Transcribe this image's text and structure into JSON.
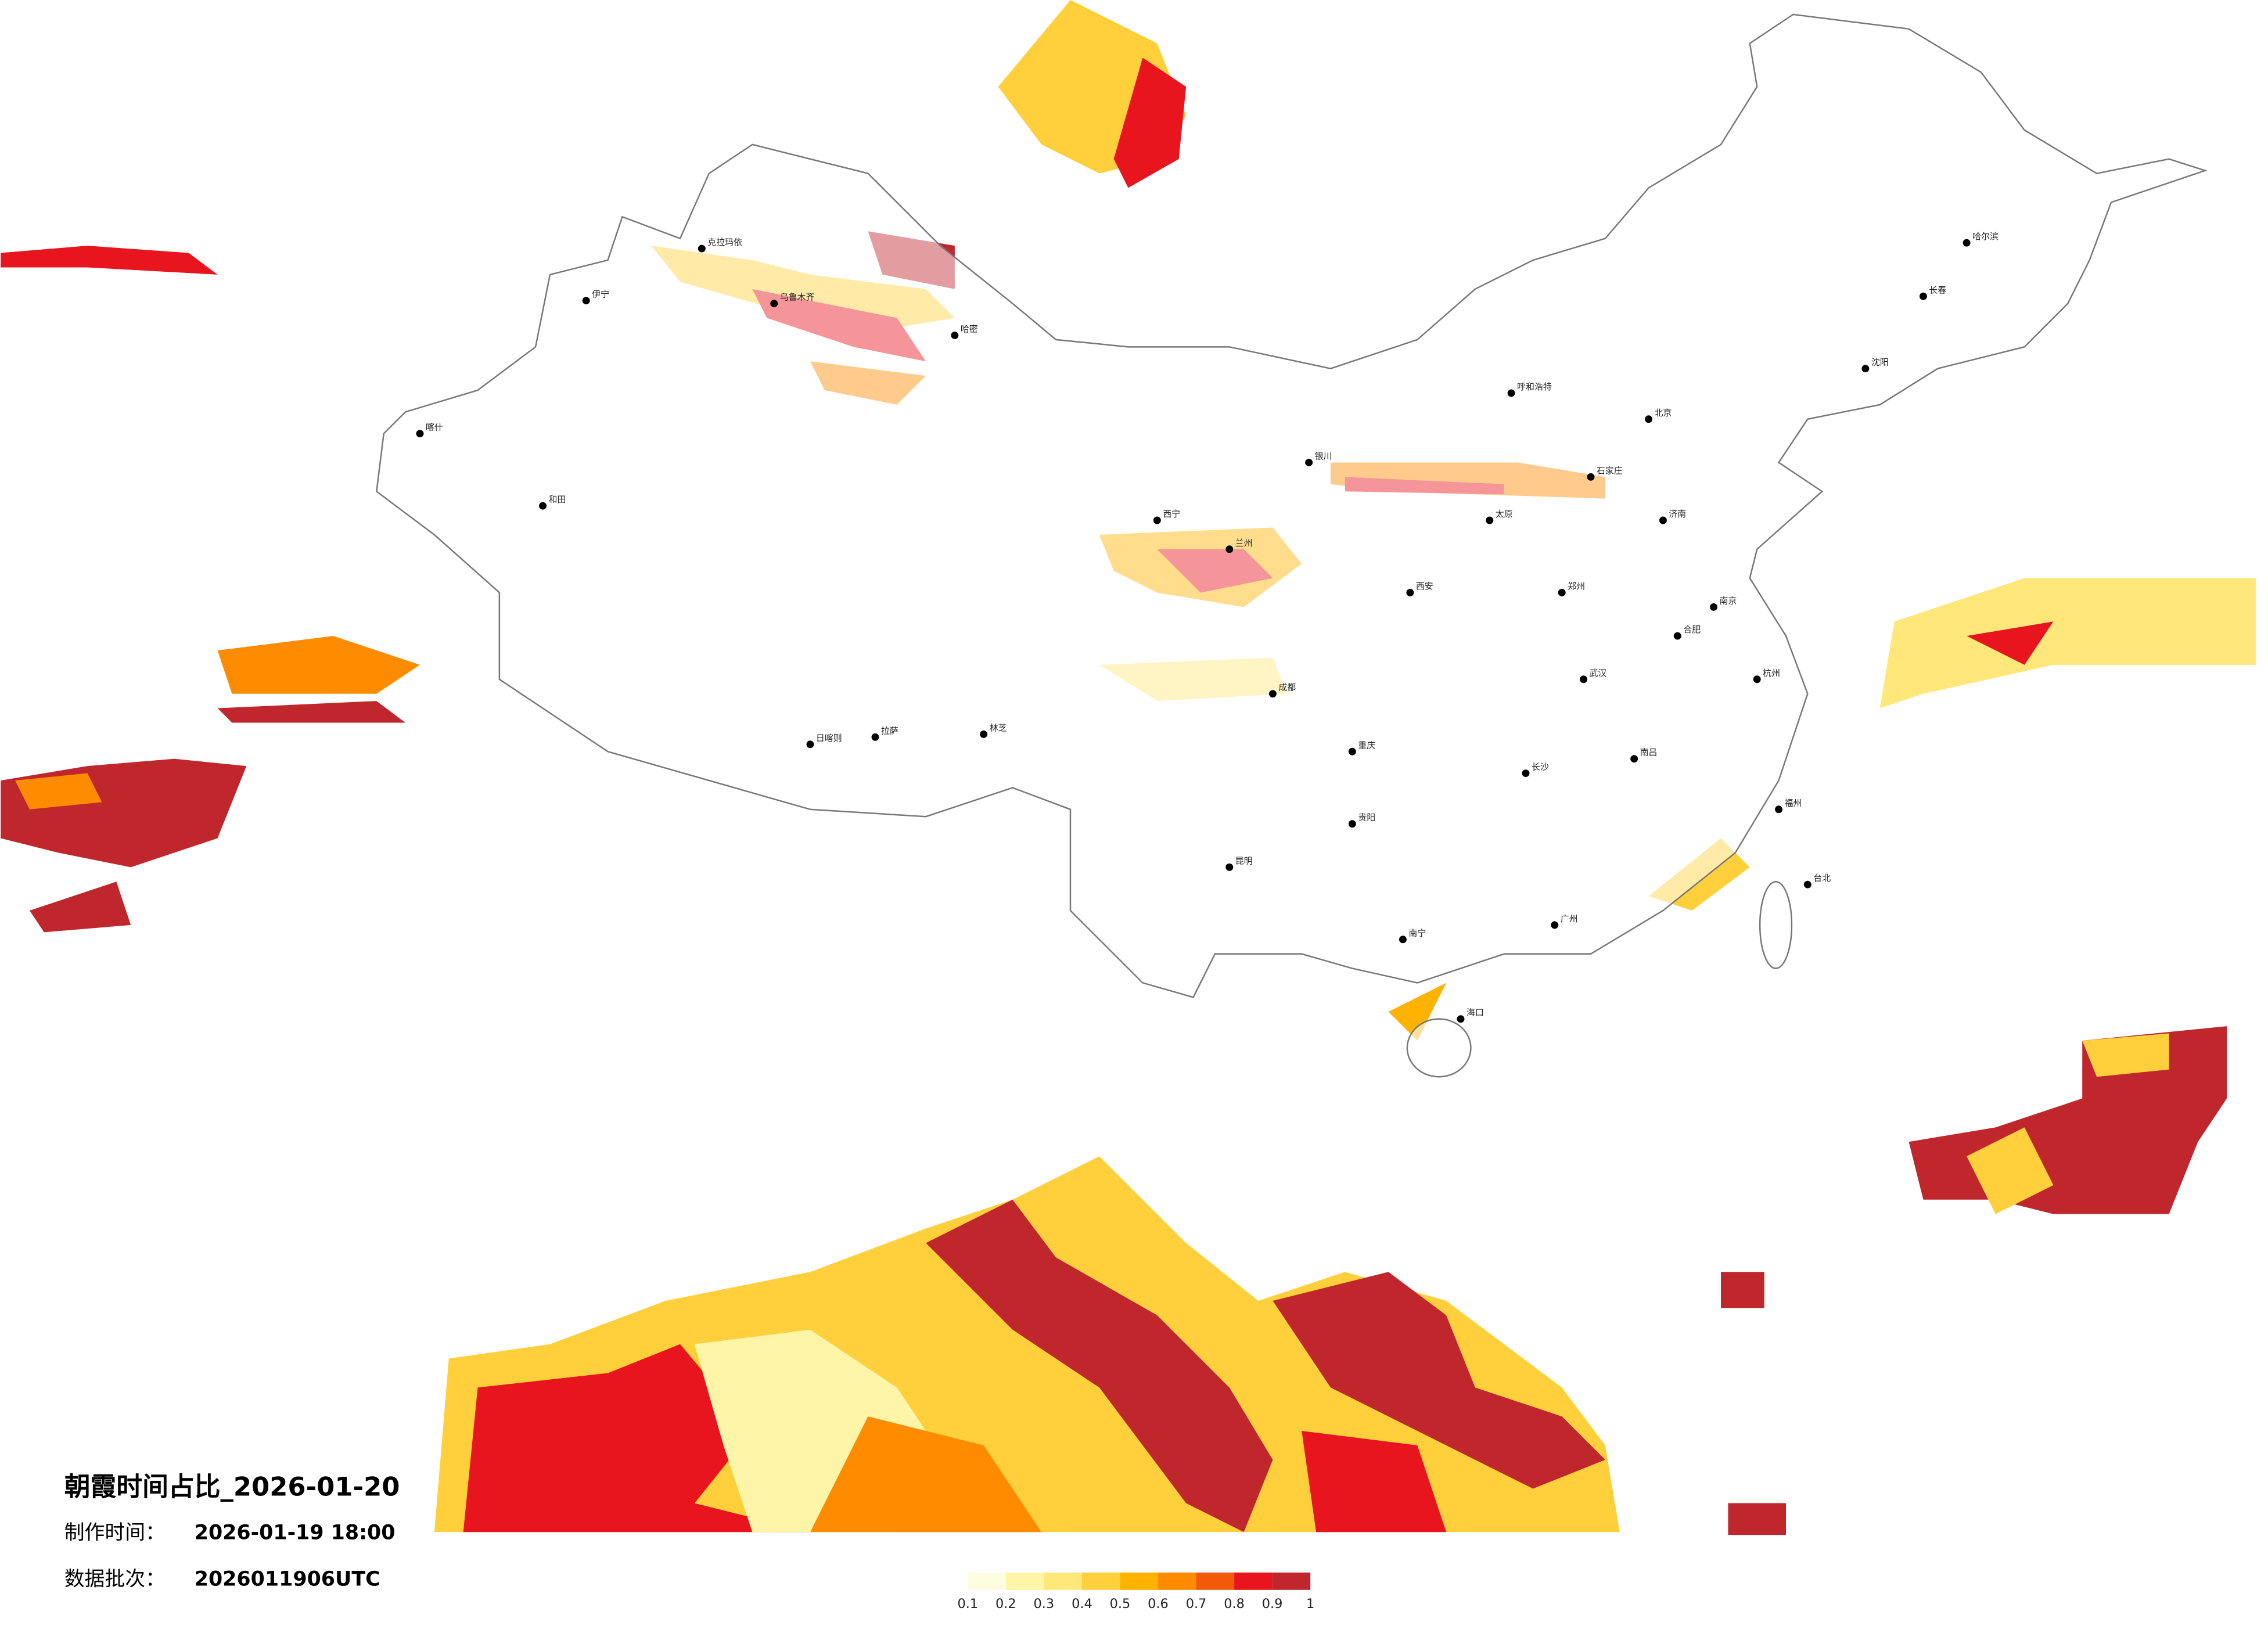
{
  "title": "朝霞时间占比_2026-01-20",
  "production_label": "制作时间：",
  "production_time": "2026-01-19 18:00",
  "batch_label": "数据批次：",
  "batch": "2026011906UTC",
  "legend": {
    "ticks": [
      0.1,
      0.2,
      0.3,
      0.4,
      0.5,
      0.6,
      0.7,
      0.8,
      0.9,
      1
    ],
    "colors": [
      "#fffde0",
      "#fff5a8",
      "#ffe77a",
      "#ffd03c",
      "#ffb300",
      "#ff8c00",
      "#f25a0a",
      "#e8141e",
      "#c0272d"
    ]
  },
  "cities": [
    "哈尔滨",
    "长春",
    "沈阳",
    "呼和浩特",
    "北京",
    "石家庄",
    "太原",
    "济南",
    "郑州",
    "西安",
    "兰州",
    "西宁",
    "银川",
    "乌鲁木齐",
    "拉萨",
    "成都",
    "重庆",
    "贵阳",
    "昆明",
    "南宁",
    "广州",
    "长沙",
    "武汉",
    "南昌",
    "合肥",
    "南京",
    "杭州",
    "福州",
    "台北",
    "海口",
    "克拉玛依",
    "和田",
    "喀什",
    "伊宁",
    "哈密",
    "日喀则",
    "林芝"
  ]
}
